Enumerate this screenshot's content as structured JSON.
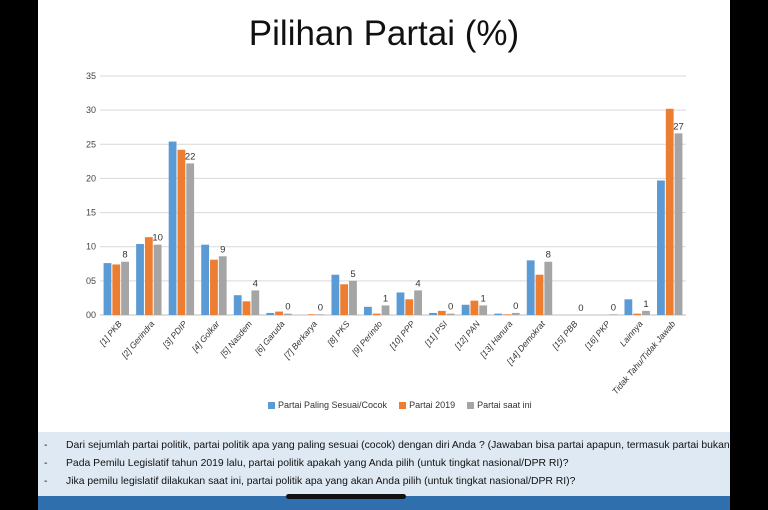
{
  "page_title": "Pilihan Partai (%)",
  "chart_data": {
    "type": "bar",
    "title": "Pilihan Partai (%)",
    "xlabel": "",
    "ylabel": "",
    "ylim": [
      0,
      35
    ],
    "y_ticks": [
      "00",
      "05",
      "10",
      "15",
      "20",
      "25",
      "30",
      "35"
    ],
    "grid": true,
    "legend_position": "bottom",
    "categories": [
      "[1] PKB",
      "[2] Gerindra",
      "[3] PDIP",
      "[4] Golkar",
      "[5] Nasdem",
      "[6] Garuda",
      "[7] Berkarya",
      "[8] PKS",
      "[9] Perindo",
      "[10] PPP",
      "[11] PSI",
      "[12] PAN",
      "[13] Hanura",
      "[14] Demokrat",
      "[15] PBB",
      "[16] PKP",
      "Lainnya",
      "Tidak Tahu/Tidak Jawab"
    ],
    "series": [
      {
        "name": "Partai Paling Sesuai/Cocok",
        "color": "#5b9bd5",
        "values": [
          7.6,
          10.4,
          25.4,
          10.3,
          2.9,
          0.3,
          0.0,
          5.9,
          1.2,
          3.3,
          0.3,
          1.5,
          0.2,
          8.0,
          0.0,
          0.0,
          2.3,
          19.7
        ]
      },
      {
        "name": "Partai 2019",
        "color": "#ed7d31",
        "values": [
          7.4,
          11.4,
          24.2,
          8.1,
          2.0,
          0.5,
          0.1,
          4.5,
          0.2,
          2.3,
          0.6,
          2.1,
          0.1,
          5.9,
          0.0,
          0.0,
          0.2,
          30.2
        ]
      },
      {
        "name": "Partai saat ini",
        "color": "#a5a5a5",
        "values": [
          7.8,
          10.3,
          22.2,
          8.6,
          3.6,
          0.2,
          0.1,
          5.0,
          1.4,
          3.6,
          0.2,
          1.4,
          0.3,
          7.8,
          0.0,
          0.1,
          0.6,
          26.6
        ]
      }
    ],
    "data_labels": [
      "8",
      "10",
      "22",
      "9",
      "4",
      "0",
      "0",
      "5",
      "1",
      "4",
      "0",
      "1",
      "0",
      "8",
      "0",
      "0",
      "1",
      "27"
    ]
  },
  "notes": [
    "Dari sejumlah partai politik, partai politik apa yang paling sesuai (cocok) dengan diri Anda ? (Jawaban bisa partai apapun, termasuk partai bukan peserta pemilu)",
    "Pada Pemilu Legislatif tahun 2019 lalu, partai politik apakah yang Anda pilih (untuk tingkat nasional/DPR RI)?",
    "Jika pemilu legislatif dilakukan saat ini, partai politik apa yang akan Anda pilih (untuk tingkat nasional/DPR RI)?"
  ],
  "note_bullet": "-"
}
